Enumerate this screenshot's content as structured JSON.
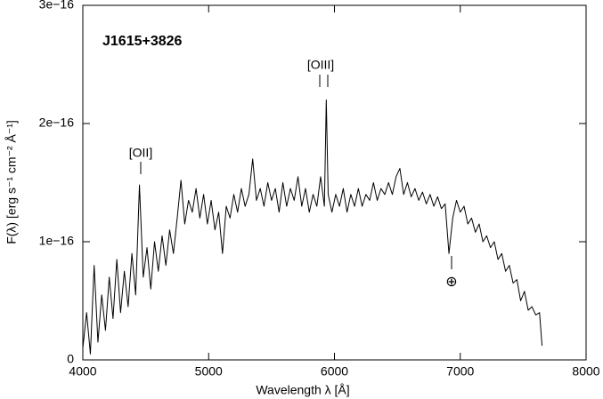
{
  "chart_data": {
    "type": "line",
    "xlabel": "Wavelength λ [Å]",
    "ylabel": "F(λ) [erg s⁻¹ cm⁻² Å⁻¹]",
    "annotations": [
      "J1615+3826",
      "[OII]",
      "[OIII]",
      "⊕"
    ],
    "color": "#000000",
    "xlim": [
      4000,
      8000
    ],
    "xticks": [
      4000,
      5000,
      6000,
      7000,
      8000
    ],
    "ylim": [
      0,
      3e-16
    ],
    "yticks": [
      0,
      {
        "value": 1e-16,
        "label": "1e−16"
      },
      {
        "value": 2e-16,
        "label": "2e−16"
      },
      {
        "value": 3e-16,
        "label": "3e−16"
      }
    ],
    "x": [
      4000,
      4030,
      4060,
      4090,
      4120,
      4150,
      4180,
      4210,
      4240,
      4270,
      4300,
      4330,
      4360,
      4390,
      4420,
      4450,
      4480,
      4510,
      4540,
      4570,
      4600,
      4630,
      4660,
      4690,
      4720,
      4750,
      4780,
      4810,
      4840,
      4870,
      4900,
      4930,
      4960,
      4990,
      5020,
      5050,
      5080,
      5110,
      5140,
      5170,
      5200,
      5230,
      5260,
      5290,
      5320,
      5350,
      5380,
      5410,
      5440,
      5470,
      5500,
      5530,
      5560,
      5590,
      5620,
      5650,
      5680,
      5710,
      5740,
      5770,
      5800,
      5830,
      5860,
      5890,
      5920,
      5935,
      5950,
      5980,
      6010,
      6040,
      6070,
      6100,
      6130,
      6160,
      6190,
      6220,
      6250,
      6280,
      6310,
      6340,
      6370,
      6400,
      6430,
      6460,
      6490,
      6520,
      6550,
      6580,
      6610,
      6640,
      6670,
      6700,
      6730,
      6760,
      6790,
      6820,
      6850,
      6880,
      6910,
      6940,
      6970,
      7000,
      7030,
      7060,
      7090,
      7120,
      7150,
      7180,
      7210,
      7240,
      7270,
      7300,
      7330,
      7360,
      7390,
      7420,
      7450,
      7480,
      7510,
      7540,
      7570,
      7600,
      7630,
      7650
    ],
    "values": [
      1e-17,
      4e-17,
      5e-18,
      8e-17,
      1.5e-17,
      5.5e-17,
      2.5e-17,
      7e-17,
      3.5e-17,
      8.5e-17,
      4e-17,
      7.5e-17,
      4.5e-17,
      9e-17,
      5.5e-17,
      1.48e-16,
      7e-17,
      9.5e-17,
      6e-17,
      1e-16,
      7.5e-17,
      1.05e-16,
      8e-17,
      1.1e-16,
      9e-17,
      1.2e-16,
      1.52e-16,
      1.15e-16,
      1.35e-16,
      1.25e-16,
      1.45e-16,
      1.2e-16,
      1.4e-16,
      1.15e-16,
      1.35e-16,
      1.1e-16,
      1.25e-16,
      9e-17,
      1.3e-16,
      1.2e-16,
      1.4e-16,
      1.25e-16,
      1.45e-16,
      1.3e-16,
      1.4e-16,
      1.7e-16,
      1.35e-16,
      1.45e-16,
      1.3e-16,
      1.5e-16,
      1.35e-16,
      1.45e-16,
      1.25e-16,
      1.5e-16,
      1.3e-16,
      1.45e-16,
      1.35e-16,
      1.55e-16,
      1.3e-16,
      1.45e-16,
      1.25e-16,
      1.4e-16,
      1.3e-16,
      1.55e-16,
      1.3e-16,
      2.2e-16,
      1.4e-16,
      1.25e-16,
      1.4e-16,
      1.3e-16,
      1.45e-16,
      1.25e-16,
      1.4e-16,
      1.3e-16,
      1.45e-16,
      1.3e-16,
      1.4e-16,
      1.35e-16,
      1.5e-16,
      1.35e-16,
      1.45e-16,
      1.4e-16,
      1.5e-16,
      1.4e-16,
      1.55e-16,
      1.62e-16,
      1.4e-16,
      1.5e-16,
      1.38e-16,
      1.45e-16,
      1.35e-16,
      1.42e-16,
      1.32e-16,
      1.4e-16,
      1.3e-16,
      1.38e-16,
      1.28e-16,
      1.32e-16,
      9e-17,
      1.2e-16,
      1.35e-16,
      1.25e-16,
      1.3e-16,
      1.15e-16,
      1.2e-16,
      1.08e-16,
      1.15e-16,
      1e-16,
      1.05e-16,
      9.5e-17,
      1e-16,
      8.5e-17,
      9e-17,
      7.5e-17,
      8e-17,
      6.5e-17,
      6.8e-17,
      5e-17,
      5.8e-17,
      4.2e-17,
      4.5e-17,
      3.8e-17,
      4e-17,
      1.2e-17
    ]
  }
}
